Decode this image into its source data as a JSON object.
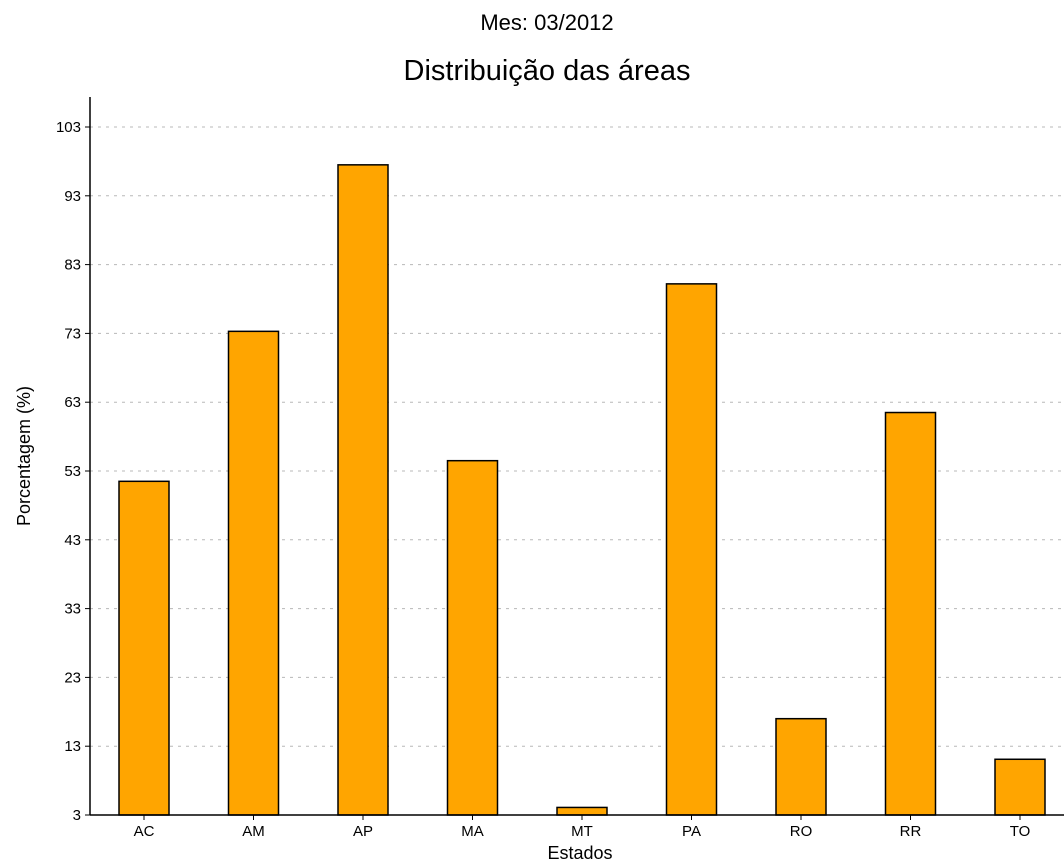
{
  "chart_data": {
    "type": "bar",
    "subtitle": "Mes: 03/2012",
    "title": "Distribuição das áreas",
    "xlabel": "Estados",
    "ylabel": "Porcentagem (%)",
    "categories": [
      "AC",
      "AM",
      "AP",
      "MA",
      "MT",
      "PA",
      "RO",
      "RR",
      "TO"
    ],
    "values": [
      51.5,
      73.3,
      97.5,
      54.5,
      4.1,
      80.2,
      17.0,
      61.5,
      11.1
    ],
    "yticks": [
      "3",
      "13",
      "23",
      "33",
      "43",
      "53",
      "63",
      "73",
      "83",
      "93",
      "103"
    ],
    "ylim": [
      3,
      107
    ],
    "grid": "horizontal-dashed",
    "bar_color": "#FFA500",
    "bar_edge_color": "#000000",
    "grid_color": "#b8b8b8"
  }
}
